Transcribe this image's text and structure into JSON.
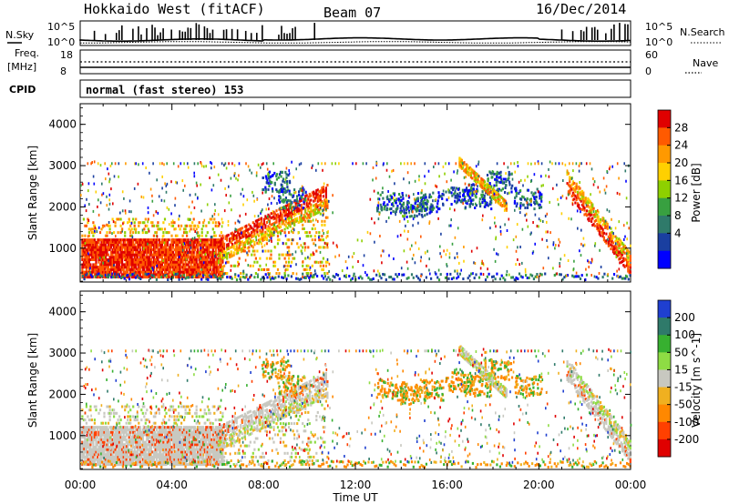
{
  "header": {
    "title": "Hokkaido West (fitACF)",
    "beam": "Beam 07",
    "date": "16/Dec/2014"
  },
  "top_panels": {
    "nsky_label": "N.Sky",
    "nsearch_label": "N.Search",
    "noise_ticks": [
      "10^5",
      "10^0"
    ],
    "freq_label_1": "Freq.",
    "freq_label_2": "[MHz]",
    "freq_ticks": [
      "18",
      "8"
    ],
    "nave_ticks": [
      "60",
      "0"
    ],
    "nave_label": "Nave",
    "cpid_label": "CPID",
    "cpid_value": "normal (fast stereo) 153"
  },
  "chart_data": [
    {
      "type": "heatmap",
      "quantity": "Power",
      "ylabel": "Slant Range [km]",
      "yticks": [
        "4000",
        "3000",
        "2000",
        "1000"
      ],
      "ylim": [
        180,
        4500
      ],
      "xlim_hours": [
        0,
        24
      ],
      "colorbar_label": "Power [dB]",
      "colorbar_ticks": [
        "28",
        "24",
        "20",
        "16",
        "12",
        "8",
        "4"
      ],
      "colorbar_colors": [
        "#e00000",
        "#ff5a00",
        "#ff9900",
        "#ffd000",
        "#8ed000",
        "#38a040",
        "#2f7a6a",
        "#1a3fa0",
        "#0000ff"
      ]
    },
    {
      "type": "heatmap",
      "quantity": "Velocity",
      "ylabel": "Slant Range [km]",
      "yticks": [
        "4000",
        "3000",
        "2000",
        "1000"
      ],
      "ylim": [
        180,
        4500
      ],
      "xlim_hours": [
        0,
        24
      ],
      "xlabel": "Time UT",
      "xticks": [
        "00:00",
        "04:00",
        "08:00",
        "12:00",
        "16:00",
        "20:00",
        "00:00"
      ],
      "colorbar_label": "Velocity [m s^-1]",
      "colorbar_ticks": [
        "200",
        "100",
        "50",
        "15",
        "-15",
        "-50",
        "-100",
        "-200"
      ],
      "colorbar_colors": [
        "#1f3fd0",
        "#2f7a6a",
        "#37b030",
        "#8edc44",
        "#c8c8c0",
        "#f0b020",
        "#ff8800",
        "#ff4000",
        "#e00000"
      ]
    }
  ]
}
